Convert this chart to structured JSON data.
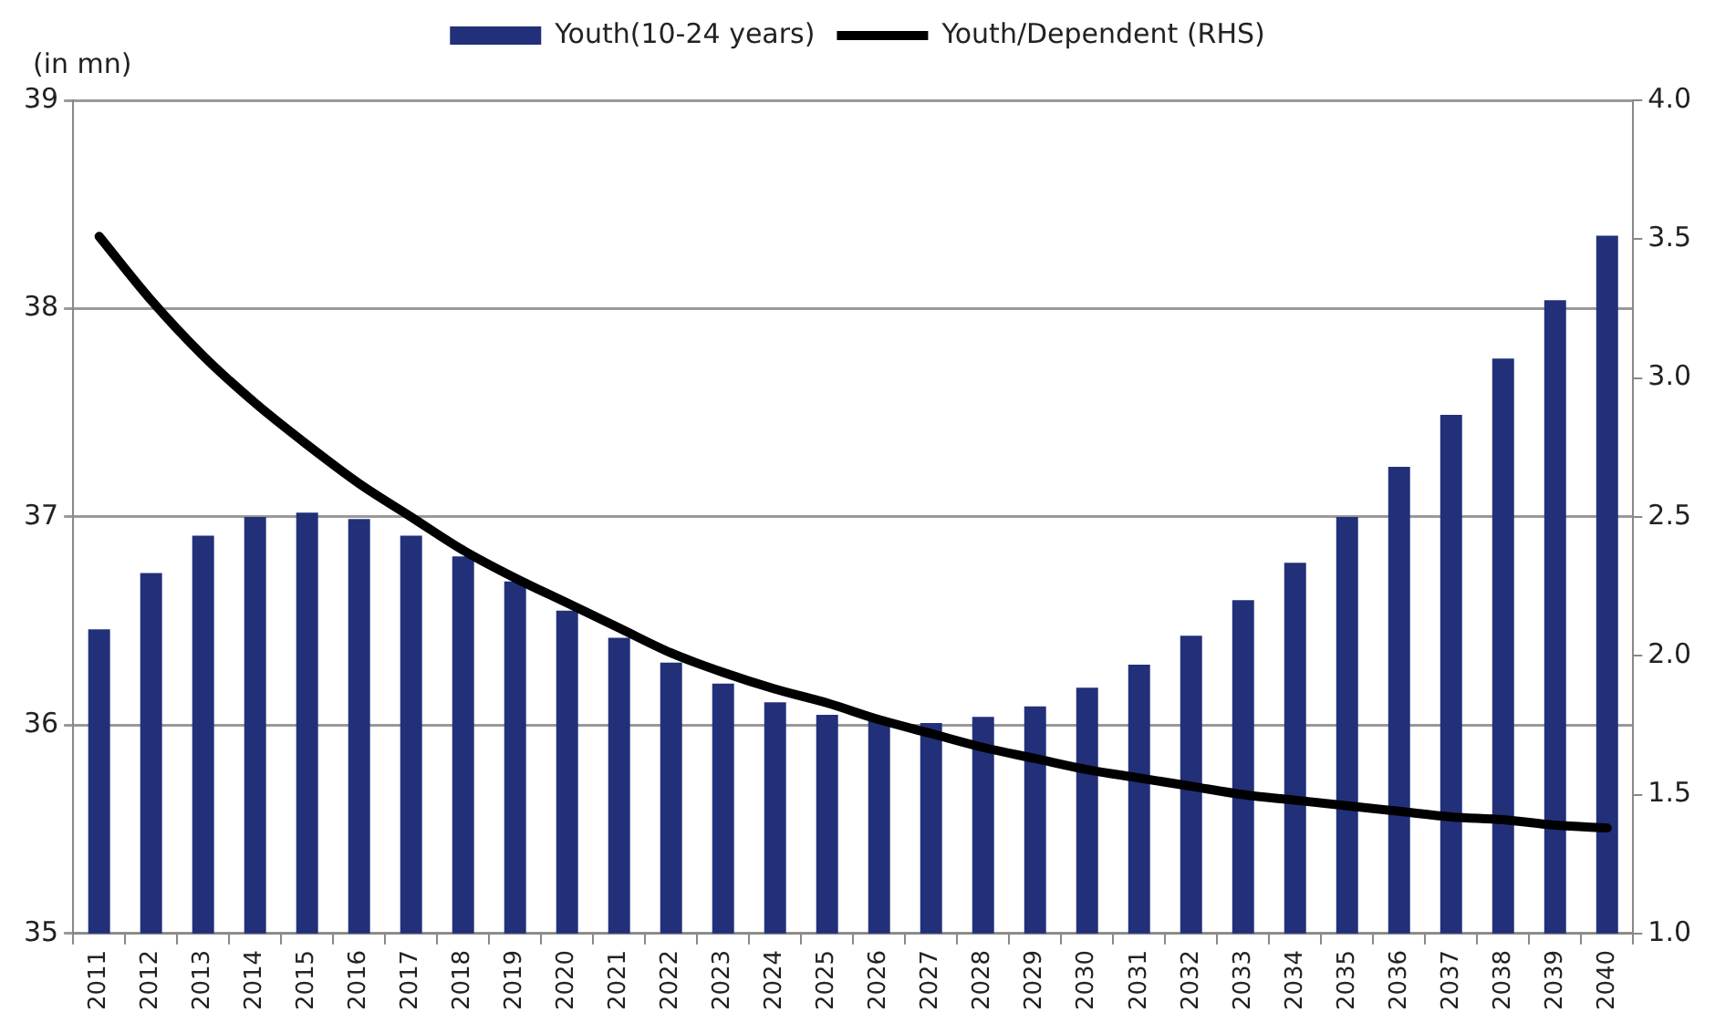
{
  "chart_data": {
    "type": "bar",
    "ylabel": "(in mn)",
    "categories": [
      "2011",
      "2012",
      "2013",
      "2014",
      "2015",
      "2016",
      "2017",
      "2018",
      "2019",
      "2020",
      "2021",
      "2022",
      "2023",
      "2024",
      "2025",
      "2026",
      "2027",
      "2028",
      "2029",
      "2030",
      "2031",
      "2032",
      "2033",
      "2034",
      "2035",
      "2036",
      "2037",
      "2038",
      "2039",
      "2040"
    ],
    "series": [
      {
        "name": "Youth(10-24 years)",
        "color": "#22307a",
        "values": [
          36.46,
          36.73,
          36.91,
          37.0,
          37.02,
          36.99,
          36.91,
          36.81,
          36.69,
          36.55,
          36.42,
          36.3,
          36.2,
          36.11,
          36.05,
          36.02,
          36.01,
          36.04,
          36.09,
          36.18,
          36.29,
          36.43,
          36.6,
          36.78,
          37.0,
          37.24,
          37.49,
          37.76,
          38.04,
          38.35
        ]
      },
      {
        "name": "Youth/Dependent (RHS)",
        "type": "line",
        "axis": "y2",
        "color": "#000000",
        "values": [
          3.51,
          3.28,
          3.08,
          2.91,
          2.76,
          2.62,
          2.5,
          2.38,
          2.28,
          2.19,
          2.1,
          2.01,
          1.94,
          1.88,
          1.83,
          1.77,
          1.72,
          1.67,
          1.63,
          1.59,
          1.56,
          1.53,
          1.5,
          1.48,
          1.46,
          1.44,
          1.42,
          1.41,
          1.39,
          1.38
        ]
      }
    ],
    "ylim": [
      35,
      39
    ],
    "yticks": [
      35,
      36,
      37,
      38,
      39
    ],
    "y2lim": [
      1.0,
      4.0
    ],
    "y2ticks": [
      {
        "value": 1,
        "label": "1.0"
      },
      {
        "value": 1.5,
        "label": "1.5"
      },
      {
        "value": 2,
        "label": "2.0"
      },
      {
        "value": 2.5,
        "label": "2.5"
      },
      {
        "value": 3,
        "label": "3.0"
      },
      {
        "value": 3.5,
        "label": "3.5"
      },
      {
        "value": 4,
        "label": "4.0"
      }
    ],
    "grid": "y",
    "legend": "top",
    "marker": "none",
    "line_style": "solid"
  }
}
